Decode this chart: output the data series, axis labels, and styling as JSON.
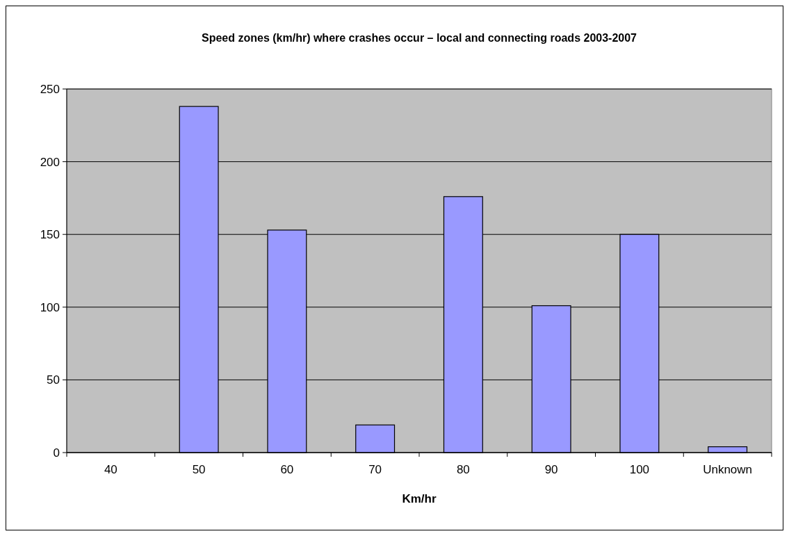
{
  "chart_data": {
    "type": "bar",
    "title": "Speed zones (km/hr) where crashes occur – local and connecting roads 2003-2007",
    "xlabel": "Km/hr",
    "categories": [
      "40",
      "50",
      "60",
      "70",
      "80",
      "90",
      "100",
      "Unknown"
    ],
    "values": [
      0,
      238,
      153,
      19,
      176,
      101,
      150,
      4
    ],
    "color": "#9999ff",
    "ylim": [
      0,
      250
    ],
    "yticks": [
      0,
      50,
      100,
      150,
      200,
      250
    ],
    "grid": "y"
  }
}
